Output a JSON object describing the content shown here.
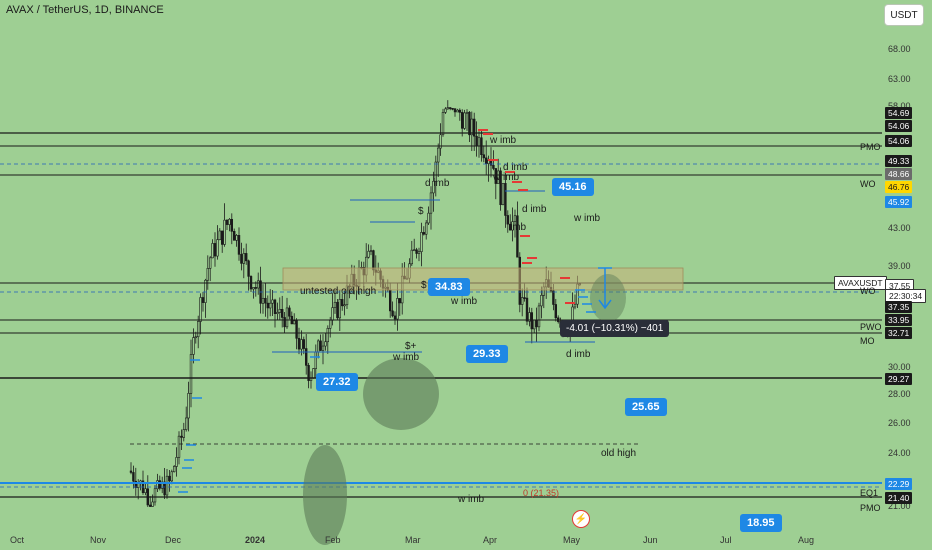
{
  "header": {
    "title": "AVAX / TetherUS, 1D, BINANCE",
    "currency_button": "USDT"
  },
  "price_axis": {
    "ticks": [
      {
        "label": "68.00",
        "v": 68
      },
      {
        "label": "63.00",
        "v": 63
      },
      {
        "label": "58.00",
        "v": 58
      },
      {
        "label": "43.00",
        "v": 43
      },
      {
        "label": "39.00",
        "v": 39
      },
      {
        "label": "30.00",
        "v": 30
      },
      {
        "label": "28.00",
        "v": 28
      },
      {
        "label": "26.00",
        "v": 26
      },
      {
        "label": "24.00",
        "v": 24
      },
      {
        "label": "21.00",
        "v": 21
      }
    ]
  },
  "time_axis": {
    "ticks": [
      "Oct",
      "Nov",
      "Dec",
      "2024",
      "Feb",
      "Mar",
      "Apr",
      "May",
      "Jun",
      "Jul",
      "Aug"
    ]
  },
  "price_tags": [
    {
      "text": "54.69",
      "bg": "#1a1a1a",
      "fg": "#ffffff",
      "v": 54.69
    },
    {
      "text": "54.06",
      "bg": "#1a1a1a",
      "fg": "#ffffff",
      "v": 54.06,
      "row": 1
    },
    {
      "text": "54.06",
      "bg": "#1a1a1a",
      "fg": "#ffffff",
      "v": 54.06,
      "row": 2
    },
    {
      "text": "49.33",
      "bg": "#1a1a1a",
      "fg": "#ffffff",
      "v": 49.33
    },
    {
      "text": "48.66",
      "bg": "#6b6b6b",
      "fg": "#ffffff",
      "v": 48.66
    },
    {
      "text": "46.76",
      "bg": "#ffd700",
      "fg": "#1a1a1a",
      "v": 46.76
    },
    {
      "text": "45.92",
      "bg": "#1e88e5",
      "fg": "#ffffff",
      "v": 45.92
    },
    {
      "text": "AVAXUSDT",
      "bg": "#ffffff",
      "fg": "#1a1a1a",
      "v": 38.5,
      "left": true
    },
    {
      "text": "37.55",
      "bg": "#ffffff",
      "fg": "#1a1a1a",
      "v": 37.55
    },
    {
      "text": "22:30:34",
      "bg": "#ffffff",
      "fg": "#1a1a1a",
      "v": 36.6
    },
    {
      "text": "37.35",
      "bg": "#1a1a1a",
      "fg": "#ffffff",
      "v": 35.2
    },
    {
      "text": "33.95",
      "bg": "#1a1a1a",
      "fg": "#ffffff",
      "v": 33.95
    },
    {
      "text": "32.71",
      "bg": "#1a1a1a",
      "fg": "#ffffff",
      "v": 32.71
    },
    {
      "text": "29.27",
      "bg": "#1a1a1a",
      "fg": "#ffffff",
      "v": 29.27
    },
    {
      "text": "22.29",
      "bg": "#1e88e5",
      "fg": "#ffffff",
      "v": 22.29
    },
    {
      "text": "21.40",
      "bg": "#1a1a1a",
      "fg": "#ffffff",
      "v": 21.4
    }
  ],
  "level_labels": [
    {
      "text": "PMO",
      "v": 54.06
    },
    {
      "text": "WO",
      "v": 46.76
    },
    {
      "text": "WO",
      "v": 37.35
    },
    {
      "text": "PWO",
      "v": 33.95
    },
    {
      "text": "MO",
      "v": 32.71
    },
    {
      "text": "EQ1",
      "v": 22.29
    },
    {
      "text": "PMO",
      "v": 21.0
    }
  ],
  "callouts": [
    {
      "text": "45.16"
    },
    {
      "text": "34.83"
    },
    {
      "text": "29.33"
    },
    {
      "text": "27.32"
    },
    {
      "text": "25.65"
    },
    {
      "text": "18.95"
    }
  ],
  "annotations": [
    "d imb",
    "w imb",
    "w imb",
    "d imb",
    "d imb",
    "w imb",
    "untested old high",
    "$",
    "$",
    "w imb",
    "$+",
    "w imb",
    "d imb",
    "old high",
    "w imb",
    "0 (21.35)",
    "imb"
  ],
  "measure_label": "-4.01 (−10.31%) −401",
  "colors": {
    "background": "#9ecf93",
    "candle": "#1a1a1a",
    "accent": "#1e88e5",
    "zone": "#c8b27a",
    "red_marker": "#e53935"
  }
}
